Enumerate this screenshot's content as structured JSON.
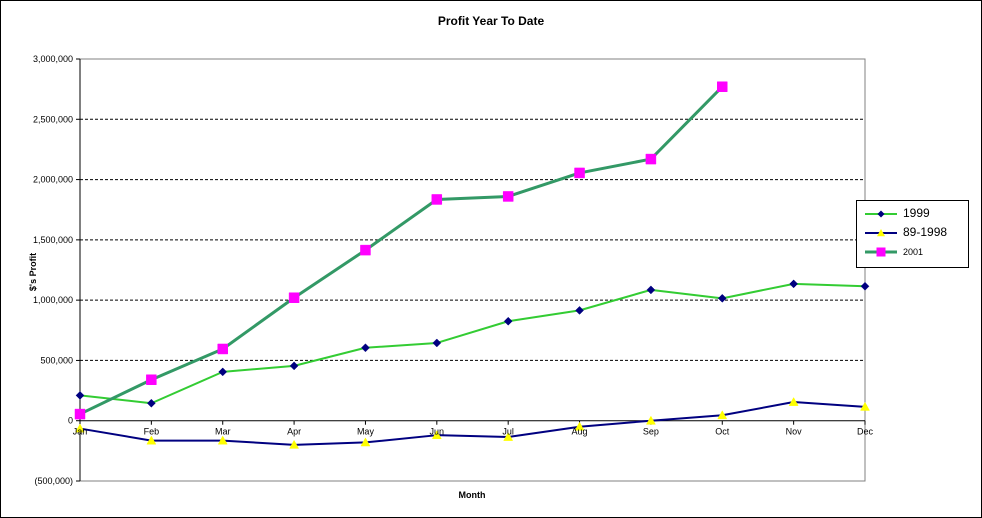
{
  "chart_data": {
    "type": "line",
    "title": "Profit Year To Date",
    "xlabel": "Month",
    "ylabel": "$'s  Profit",
    "categories": [
      "Jan",
      "Feb",
      "Mar",
      "Apr",
      "May",
      "Jun",
      "Jul",
      "Aug",
      "Sep",
      "Oct",
      "Nov",
      "Dec"
    ],
    "ylim": [
      -500000,
      3000000
    ],
    "yticks": [
      3000000,
      2500000,
      2000000,
      1500000,
      1000000,
      500000,
      0,
      -500000
    ],
    "ytick_labels": [
      "3,000,000",
      "2,500,000",
      "2,000,000",
      "1,500,000",
      "1,000,000",
      "500,000",
      "0",
      "(500,000)"
    ],
    "grid": true,
    "legend_position": "right",
    "series": [
      {
        "name": "1999",
        "color": "#33cc33",
        "marker_color": "#000080",
        "marker": "diamond",
        "values": [
          210000,
          145000,
          405000,
          455000,
          605000,
          645000,
          825000,
          915000,
          1085000,
          1015000,
          1135000,
          1115000
        ]
      },
      {
        "name": "89-1998",
        "color": "#000080",
        "marker_color": "#ffff00",
        "marker": "triangle",
        "values": [
          -65000,
          -165000,
          -165000,
          -200000,
          -180000,
          -120000,
          -135000,
          -50000,
          0,
          45000,
          155000,
          115000
        ]
      },
      {
        "name": "2001",
        "color": "#339966",
        "marker_color": "#ff00ff",
        "marker": "square",
        "values": [
          55000,
          340000,
          595000,
          1020000,
          1415000,
          1835000,
          1860000,
          2055000,
          2170000,
          2770000,
          null,
          null
        ]
      }
    ]
  },
  "colors": {
    "negative_tick": "#cc0000",
    "gridline": "#000000",
    "plot_border": "#808080"
  }
}
